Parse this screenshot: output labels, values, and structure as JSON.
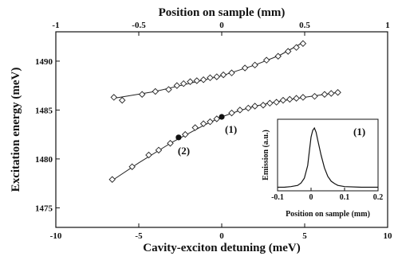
{
  "chart_data": {
    "type": "scatter",
    "xlabel": "Cavity-exciton detuning (meV)",
    "ylabel": "Excitation energy (meV)",
    "x2label": "Position on sample (mm)",
    "xlim": [
      -10,
      10
    ],
    "ylim": [
      1473,
      1493
    ],
    "x_ticks": [
      -10,
      -5,
      0,
      5,
      10
    ],
    "x_tick_labels": [
      "-10",
      "-5",
      "0",
      "5",
      "10"
    ],
    "y_ticks": [
      1475,
      1480,
      1485,
      1490
    ],
    "y_tick_labels": [
      "1475",
      "1480",
      "1485",
      "1490"
    ],
    "x2_ticks": [
      -1,
      -0.5,
      0,
      0.5,
      1
    ],
    "x2_tick_labels": [
      "-1",
      "-0.5",
      "0",
      "0.5",
      "1"
    ],
    "x2_at_x0": 0.0,
    "x2_to_x_scale": 10.0,
    "grid": false,
    "series": [
      {
        "points": [
          [
            -6.5,
            1486.3
          ],
          [
            -6.0,
            1486.0
          ],
          [
            -4.8,
            1486.6
          ],
          [
            -4.0,
            1486.9
          ],
          [
            -3.2,
            1487.1
          ],
          [
            -2.7,
            1487.5
          ],
          [
            -2.3,
            1487.7
          ],
          [
            -1.9,
            1487.9
          ],
          [
            -1.5,
            1488.0
          ],
          [
            -1.1,
            1488.1
          ],
          [
            -0.7,
            1488.3
          ],
          [
            -0.3,
            1488.4
          ],
          [
            0.1,
            1488.6
          ],
          [
            0.6,
            1488.8
          ],
          [
            1.4,
            1489.3
          ],
          [
            2.0,
            1489.6
          ],
          [
            2.7,
            1490.1
          ],
          [
            3.4,
            1490.5
          ],
          [
            4.0,
            1491.0
          ],
          [
            4.5,
            1491.4
          ],
          [
            4.9,
            1491.8
          ]
        ],
        "fit": [
          [
            -6.5,
            1486.2
          ],
          [
            -4.0,
            1486.9
          ],
          [
            -2.0,
            1487.7
          ],
          [
            0.0,
            1488.5
          ],
          [
            2.0,
            1489.6
          ],
          [
            3.5,
            1490.6
          ],
          [
            4.9,
            1491.9
          ]
        ]
      },
      {
        "points": [
          [
            -6.6,
            1477.9
          ],
          [
            -5.4,
            1479.2
          ],
          [
            -4.4,
            1480.4
          ],
          [
            -3.8,
            1480.9
          ],
          [
            -3.1,
            1481.6
          ],
          [
            -2.2,
            1482.5
          ],
          [
            -1.6,
            1483.2
          ],
          [
            -1.1,
            1483.6
          ],
          [
            -0.7,
            1483.8
          ],
          [
            -0.3,
            1484.1
          ],
          [
            0.6,
            1484.7
          ],
          [
            1.1,
            1485.0
          ],
          [
            1.6,
            1485.2
          ],
          [
            2.0,
            1485.4
          ],
          [
            2.5,
            1485.5
          ],
          [
            2.9,
            1485.7
          ],
          [
            3.3,
            1485.8
          ],
          [
            3.7,
            1486.0
          ],
          [
            4.1,
            1486.1
          ],
          [
            4.5,
            1486.2
          ],
          [
            4.9,
            1486.3
          ],
          [
            5.6,
            1486.4
          ],
          [
            6.2,
            1486.6
          ],
          [
            6.6,
            1486.7
          ],
          [
            7.0,
            1486.8
          ]
        ],
        "fit": [
          [
            -6.6,
            1477.8
          ],
          [
            -5.0,
            1479.6
          ],
          [
            -3.0,
            1481.7
          ],
          [
            -1.0,
            1483.5
          ],
          [
            0.0,
            1484.3
          ],
          [
            1.0,
            1484.9
          ],
          [
            2.0,
            1485.4
          ],
          [
            3.5,
            1485.9
          ],
          [
            5.0,
            1486.3
          ],
          [
            7.0,
            1486.8
          ]
        ]
      }
    ],
    "marked_points": [
      {
        "label": "(1)",
        "x": 0.0,
        "y": 1484.3
      },
      {
        "label": "(2)",
        "x": -2.6,
        "y": 1482.2
      }
    ],
    "inset": {
      "xlabel": "Position on sample (mm)",
      "ylabel": "Emission (a.u.)",
      "label": "(1)",
      "xlim": [
        -0.1,
        0.2
      ],
      "x_ticks": [
        -0.1,
        0,
        0.1,
        0.2
      ],
      "x_tick_labels": [
        "-0.1",
        "0",
        "0.1",
        "0.2"
      ],
      "profile": [
        [
          -0.1,
          0.02
        ],
        [
          -0.08,
          0.02
        ],
        [
          -0.06,
          0.03
        ],
        [
          -0.04,
          0.05
        ],
        [
          -0.03,
          0.09
        ],
        [
          -0.02,
          0.17
        ],
        [
          -0.01,
          0.38
        ],
        [
          -0.005,
          0.62
        ],
        [
          0.0,
          0.85
        ],
        [
          0.005,
          0.96
        ],
        [
          0.01,
          1.0
        ],
        [
          0.015,
          0.93
        ],
        [
          0.02,
          0.8
        ],
        [
          0.03,
          0.55
        ],
        [
          0.04,
          0.34
        ],
        [
          0.05,
          0.2
        ],
        [
          0.06,
          0.12
        ],
        [
          0.07,
          0.08
        ],
        [
          0.08,
          0.05
        ],
        [
          0.1,
          0.03
        ],
        [
          0.15,
          0.02
        ],
        [
          0.2,
          0.02
        ]
      ]
    }
  }
}
